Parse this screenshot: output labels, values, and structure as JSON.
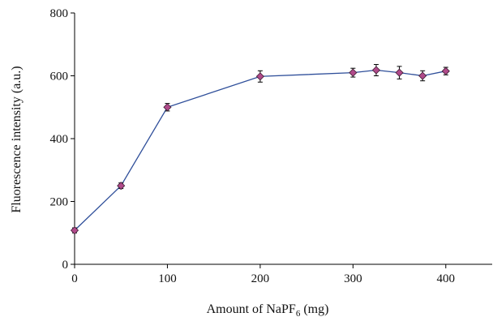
{
  "chart_data": {
    "type": "line",
    "title": "",
    "xlabel": "Amount of NaPF",
    "xlabel_sub": "6",
    "xlabel_suffix": " (mg)",
    "ylabel": "Fluorescence intensity (a.u.)",
    "xlim": [
      0,
      450
    ],
    "ylim": [
      0,
      800
    ],
    "xticks": [
      0,
      100,
      200,
      300,
      400
    ],
    "yticks": [
      0,
      200,
      400,
      600,
      800
    ],
    "grid": false,
    "legend": "none",
    "series": [
      {
        "x": [
          0,
          50,
          100,
          200,
          300,
          325,
          350,
          375,
          400
        ],
        "y": [
          108,
          250,
          500,
          598,
          610,
          618,
          610,
          600,
          615
        ],
        "err": [
          8,
          9,
          12,
          18,
          14,
          18,
          20,
          16,
          12
        ],
        "line_color": "#2f4f9a",
        "marker_color": "#b04a8a"
      }
    ]
  }
}
